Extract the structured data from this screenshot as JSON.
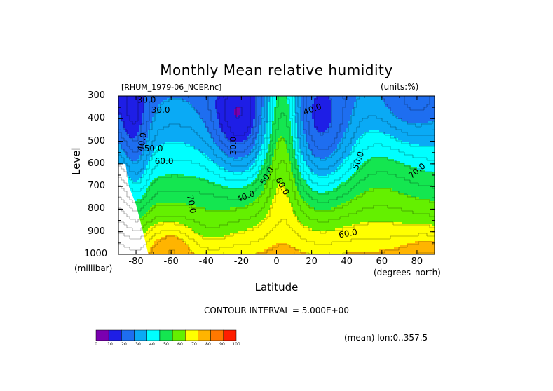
{
  "header": {
    "title": "Monthly Mean relative humidity",
    "dataset": "[RHUM_1979-06_NCEP.nc]",
    "units": "(units:%)"
  },
  "chart_data": {
    "type": "heatmap",
    "title": "Monthly Mean relative humidity",
    "xlabel": "Latitude",
    "x_units": "(degrees_north)",
    "ylabel": "Level",
    "y_units": "(millibar)",
    "xlim": [
      -90,
      90
    ],
    "ylim": [
      1000,
      300
    ],
    "x_ticks": [
      "-80",
      "-60",
      "-40",
      "-20",
      "0",
      "20",
      "40",
      "60",
      "80"
    ],
    "y_ticks": [
      "300",
      "400",
      "500",
      "600",
      "700",
      "800",
      "900",
      "1000"
    ],
    "contour_interval": "CONTOUR INTERVAL = 5.000E+00",
    "contour_labels": [
      "30.0",
      "30.0",
      "40.0",
      "50.0",
      "60.0",
      "70.0",
      "30.0",
      "40.0",
      "50.0",
      "60.0",
      "40.0",
      "50.0",
      "60.0",
      "70.0"
    ],
    "colorbar": {
      "ticks": [
        "0",
        "10",
        "20",
        "30",
        "40",
        "50",
        "60",
        "70",
        "80",
        "90",
        "100"
      ],
      "colors": [
        "#7a00b0",
        "#1e1ee6",
        "#1e6ef0",
        "#0aaaf5",
        "#00ffff",
        "#14e650",
        "#64f000",
        "#ffff00",
        "#ffb400",
        "#ff7800",
        "#ff1e00"
      ]
    }
  },
  "footer": {
    "mean_range": "(mean) lon:0..357.5"
  }
}
